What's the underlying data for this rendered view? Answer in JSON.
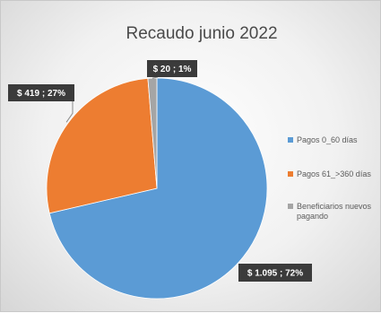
{
  "chart_data": {
    "type": "pie",
    "title": "Recaudo junio 2022",
    "slices": [
      {
        "name": "Pagos 0_60 días",
        "value": 1095,
        "label": "$ 1.095 ; 72%",
        "percent": 72,
        "color": "#5b9bd5"
      },
      {
        "name": "Pagos 61_>360 días",
        "value": 419,
        "label": "$ 419 ; 27%",
        "percent": 27,
        "color": "#ed7d31"
      },
      {
        "name": "Beneficiarios nuevos pagando",
        "value": 20,
        "label": "$ 20 ; 1%",
        "percent": 1,
        "color": "#a5a5a5"
      }
    ],
    "legend_position": "right",
    "data_label_style": "dark callout boxes with white text"
  }
}
